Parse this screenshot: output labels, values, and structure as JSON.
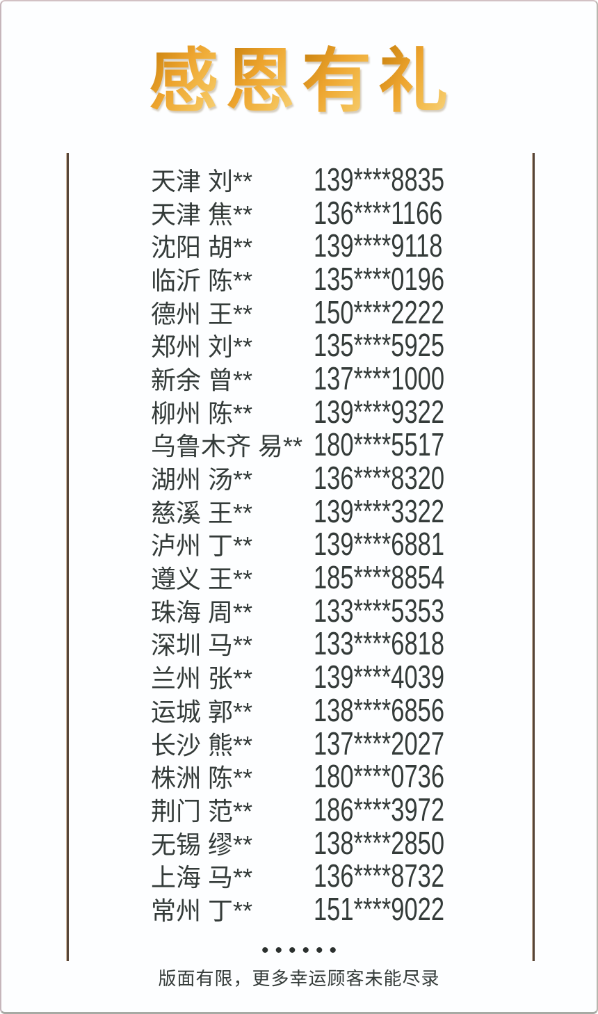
{
  "title": "感恩有礼",
  "winners": [
    {
      "name": "天津 刘**",
      "phone": "139****8835"
    },
    {
      "name": "天津 焦**",
      "phone": "136****1166"
    },
    {
      "name": "沈阳 胡**",
      "phone": "139****9118"
    },
    {
      "name": "临沂 陈**",
      "phone": "135****0196"
    },
    {
      "name": "德州 王**",
      "phone": "150****2222"
    },
    {
      "name": "郑州 刘**",
      "phone": "135****5925"
    },
    {
      "name": "新余 曾**",
      "phone": "137****1000"
    },
    {
      "name": "柳州 陈**",
      "phone": "139****9322"
    },
    {
      "name": "乌鲁木齐 易**",
      "phone": "180****5517"
    },
    {
      "name": "湖州 汤**",
      "phone": "136****8320"
    },
    {
      "name": "慈溪 王**",
      "phone": "139****3322"
    },
    {
      "name": "泸州 丁**",
      "phone": "139****6881"
    },
    {
      "name": "遵义 王**",
      "phone": "185****8854"
    },
    {
      "name": "珠海 周**",
      "phone": "133****5353"
    },
    {
      "name": "深圳 马**",
      "phone": "133****6818"
    },
    {
      "name": "兰州 张**",
      "phone": "139****4039"
    },
    {
      "name": "运城 郭**",
      "phone": "138****6856"
    },
    {
      "name": "长沙 熊**",
      "phone": "137****2027"
    },
    {
      "name": "株洲 陈**",
      "phone": "180****0736"
    },
    {
      "name": "荆门 范**",
      "phone": "186****3972"
    },
    {
      "name": "无锡 缪**",
      "phone": "138****2850"
    },
    {
      "name": "上海 马**",
      "phone": "136****8732"
    },
    {
      "name": "常州 丁**",
      "phone": "151****9022"
    }
  ],
  "footer": {
    "dots": "••••••",
    "note": "版面有限，更多幸运顾客未能尽录"
  },
  "colors": {
    "title_gradient_dark": "#c9820f",
    "title_gradient_mid": "#eda42e",
    "title_gradient_light": "#f8d887",
    "rule_brown": "#564538",
    "rule_highlight": "#d9c3ad",
    "list_text": "#343b39",
    "page_border": "#c6b6bb",
    "background": "#fdfeff"
  }
}
